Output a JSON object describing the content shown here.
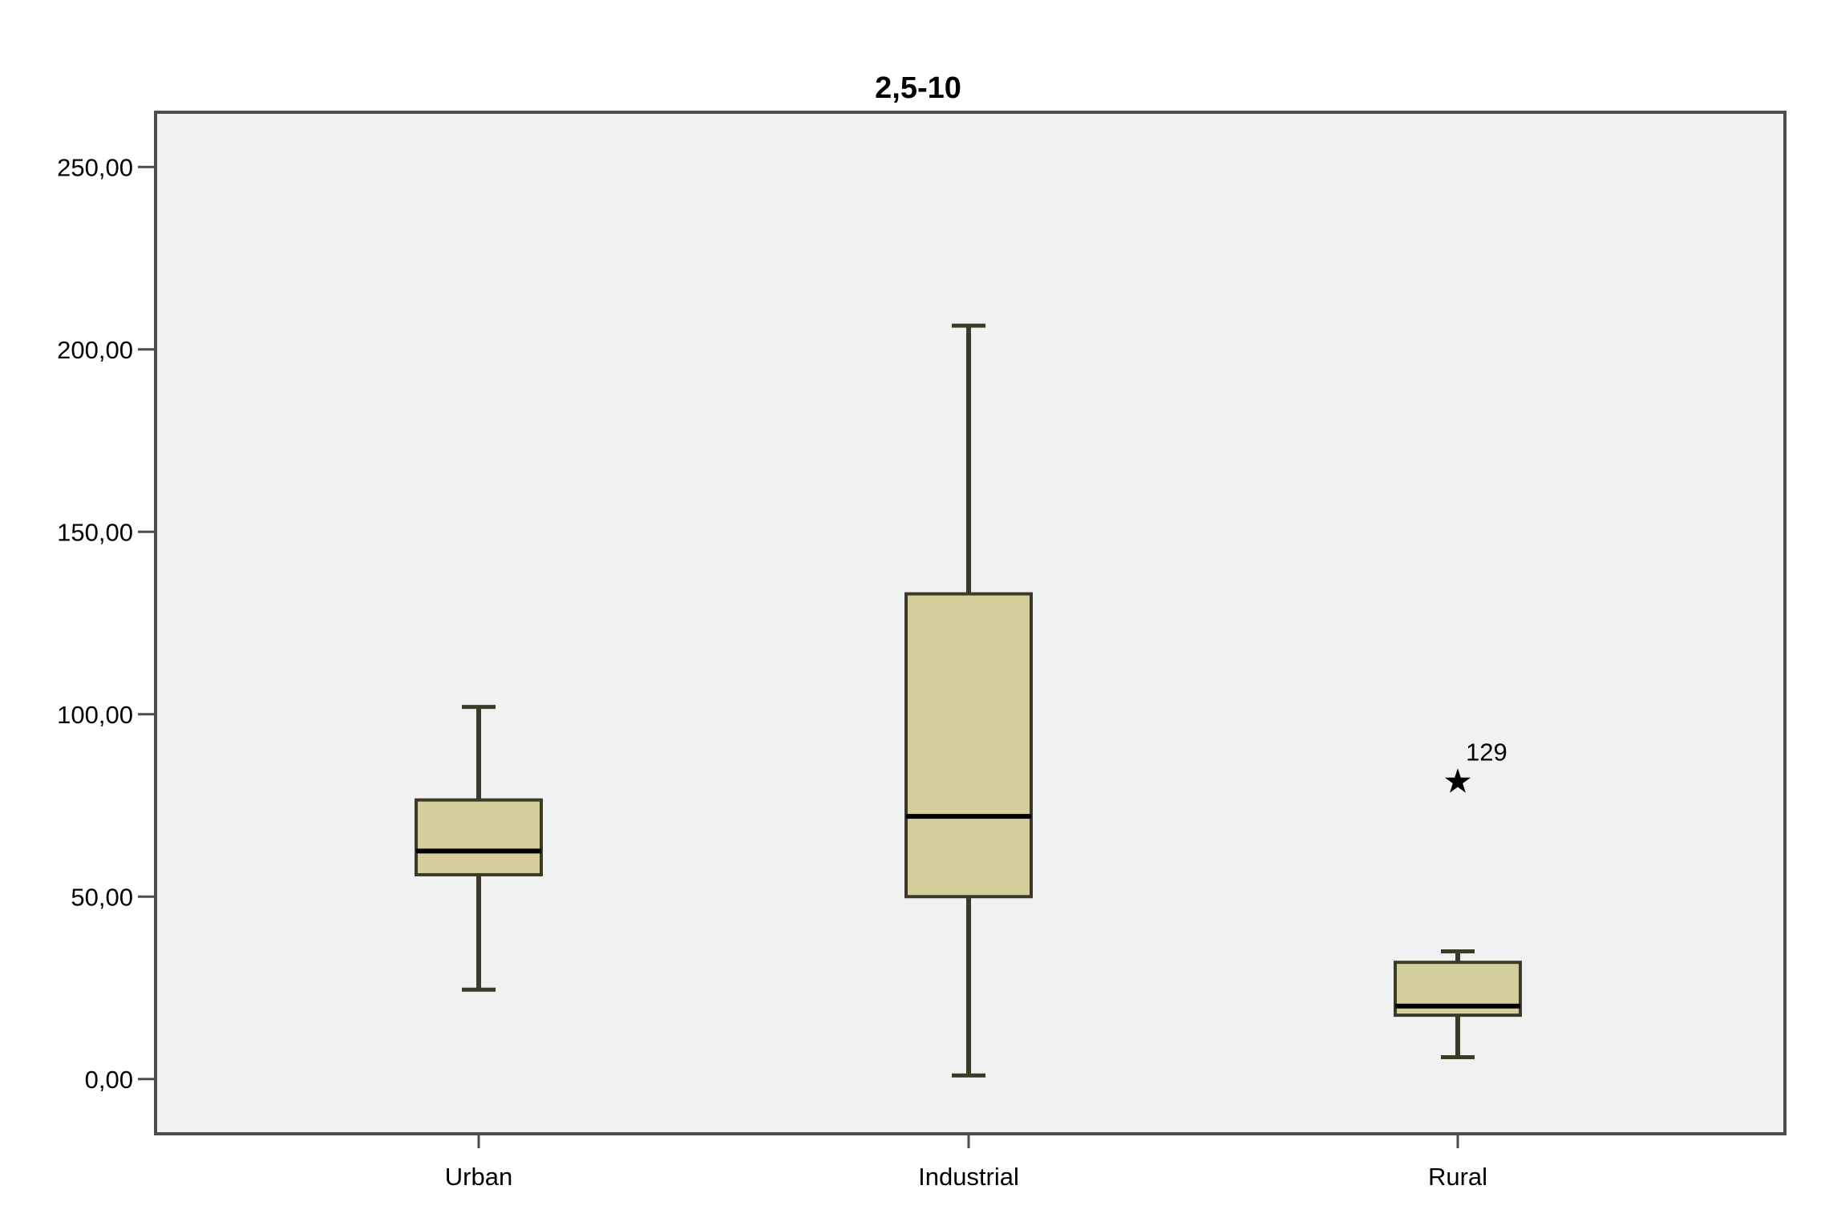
{
  "chart_data": {
    "type": "boxplot",
    "title": "2,5-10",
    "xlabel": "",
    "ylabel": "",
    "ylim": [
      -15,
      265
    ],
    "yticks": [
      0,
      50,
      100,
      150,
      200,
      250
    ],
    "ytick_labels": [
      "0,00",
      "50,00",
      "100,00",
      "150,00",
      "200,00",
      "250,00"
    ],
    "grid": false,
    "categories": [
      "Urban",
      "Industrial",
      "Rural"
    ],
    "boxes": [
      {
        "category": "Urban",
        "whisker_low": 24.5,
        "q1": 56,
        "median": 62.5,
        "q3": 76.5,
        "whisker_high": 102,
        "outliers": []
      },
      {
        "category": "Industrial",
        "whisker_low": 1,
        "q1": 50,
        "median": 72,
        "q3": 133,
        "whisker_high": 206.5,
        "outliers": []
      },
      {
        "category": "Rural",
        "whisker_low": 6,
        "q1": 17.5,
        "median": 20,
        "q3": 32,
        "whisker_high": 35,
        "outliers": [
          {
            "value": 82,
            "label": "129",
            "marker": "star"
          }
        ]
      }
    ],
    "colors": {
      "box_fill": "#d4cf9a",
      "box_stroke": "#3a3a28",
      "plot_background": "#f1f1f1",
      "axis": "#4d4d4d",
      "text": "#000000"
    }
  }
}
